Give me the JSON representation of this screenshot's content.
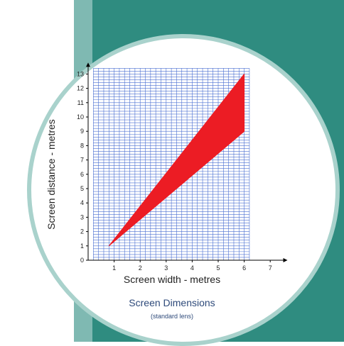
{
  "chart_data": {
    "type": "area",
    "xlabel": "Screen width - metres",
    "ylabel": "Screen distance - metres",
    "title": "Screen Dimensions",
    "subtitle": "(standard lens)",
    "xlim": [
      0,
      7.5
    ],
    "ylim": [
      0,
      13.5
    ],
    "x_ticks": [
      "1",
      "2",
      "3",
      "4",
      "5",
      "6",
      "7"
    ],
    "y_ticks": [
      "0",
      "1",
      "2",
      "3",
      "4",
      "5",
      "6",
      "7",
      "8",
      "9",
      "10",
      "11",
      "12",
      "13"
    ],
    "grid": true,
    "series": [
      {
        "x": [
          0.8,
          6,
          6,
          0.8
        ],
        "y": [
          1,
          13,
          9,
          1
        ]
      }
    ]
  },
  "colors": {
    "background_teal": "#2f8c80",
    "background_strip": "#7fb9b2",
    "circle_border": "#a9d2cc",
    "grid": "#4a6fd1",
    "fill": "#ec1c24",
    "title_text": "#2e4a7a"
  }
}
